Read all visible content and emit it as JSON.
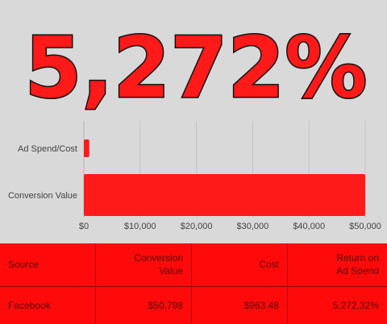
{
  "headline": {
    "text": "5,272%"
  },
  "colors": {
    "bar": "#ff1a1a",
    "table_bg": "#ff0a0a",
    "table_text": "#5a0a0a",
    "background": "#d9d9d9"
  },
  "chart_data": {
    "type": "bar",
    "orientation": "horizontal",
    "categories": [
      "Ad Spend/Cost",
      "Conversion Value"
    ],
    "values": [
      963.48,
      50798
    ],
    "xlim": [
      0,
      50000
    ],
    "xticks": [
      "$0",
      "$10,000",
      "$20,000",
      "$30,000",
      "$40,000",
      "$50,000"
    ],
    "xtick_values": [
      0,
      10000,
      20000,
      30000,
      40000,
      50000
    ],
    "grid": true
  },
  "table": {
    "headers": [
      "Source",
      "Conversion\nValue",
      "Cost",
      "Return on\nAd Spend"
    ],
    "rows": [
      [
        "Facebook",
        "$50,798",
        "$963.48",
        "5,272.32%"
      ]
    ]
  }
}
